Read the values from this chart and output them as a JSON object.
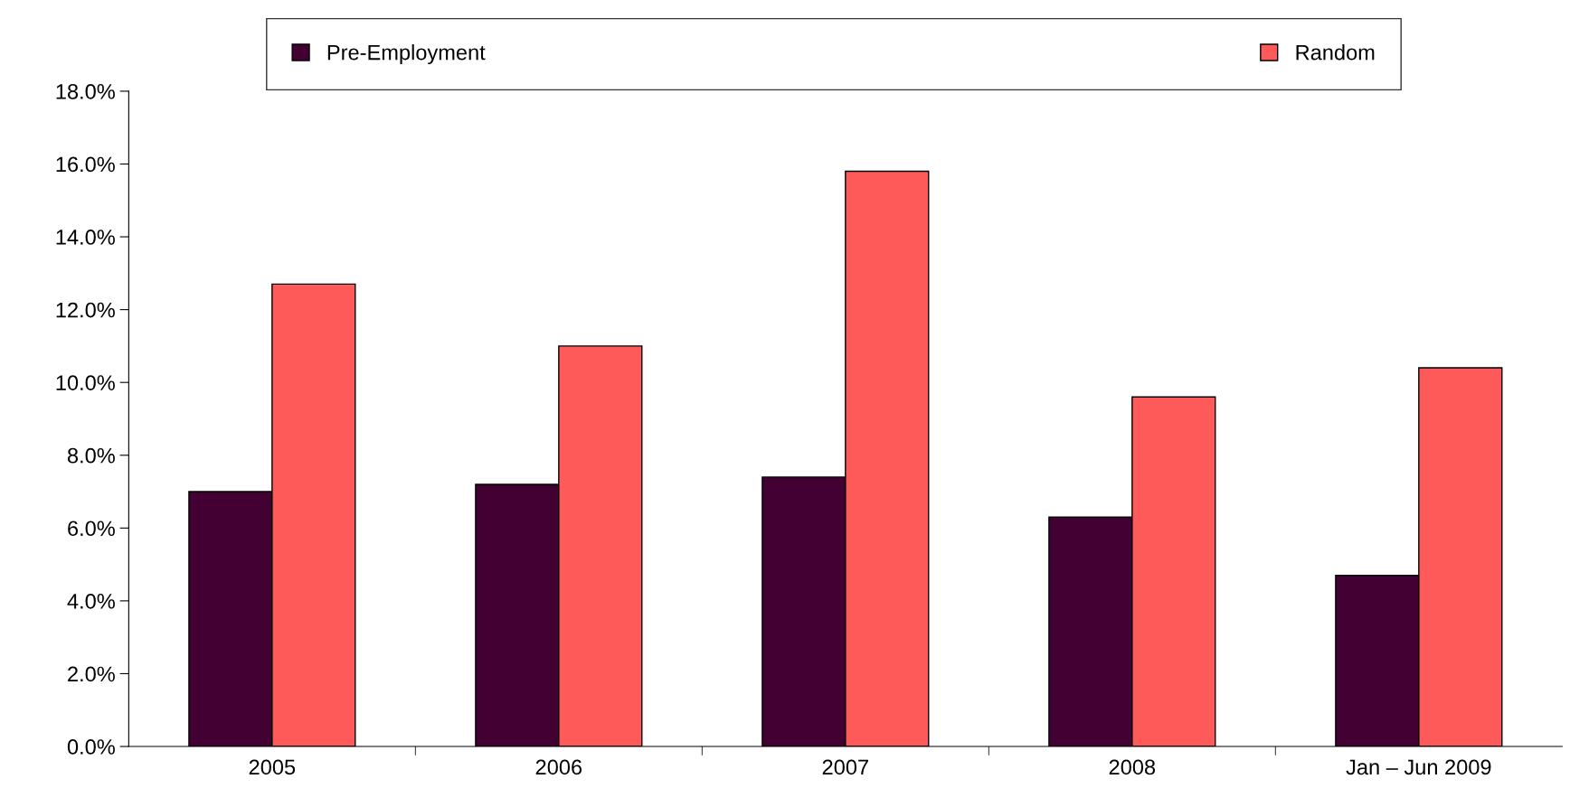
{
  "chart_data": {
    "type": "bar",
    "categories": [
      "2005",
      "2006",
      "2007",
      "2008",
      "Jan – Jun 2009"
    ],
    "series": [
      {
        "name": "Pre-Employment",
        "color": "#420033",
        "values": [
          7.0,
          7.2,
          7.4,
          6.3,
          4.7
        ]
      },
      {
        "name": "Random",
        "color": "#ff5a5a",
        "values": [
          12.7,
          11.0,
          15.8,
          9.6,
          10.4
        ]
      }
    ],
    "ylim": [
      0,
      18
    ],
    "yticks": [
      {
        "value": 0,
        "label": "0.0%"
      },
      {
        "value": 2,
        "label": "2.0%"
      },
      {
        "value": 4,
        "label": "4.0%"
      },
      {
        "value": 6,
        "label": "6.0%"
      },
      {
        "value": 8,
        "label": "8.0%"
      },
      {
        "value": 10,
        "label": "10.0%"
      },
      {
        "value": 12,
        "label": "12.0%"
      },
      {
        "value": 14,
        "label": "14.0%"
      },
      {
        "value": 16,
        "label": "16.0%"
      },
      {
        "value": 18,
        "label": "18.0%"
      }
    ],
    "grid": false,
    "legend": "top"
  }
}
